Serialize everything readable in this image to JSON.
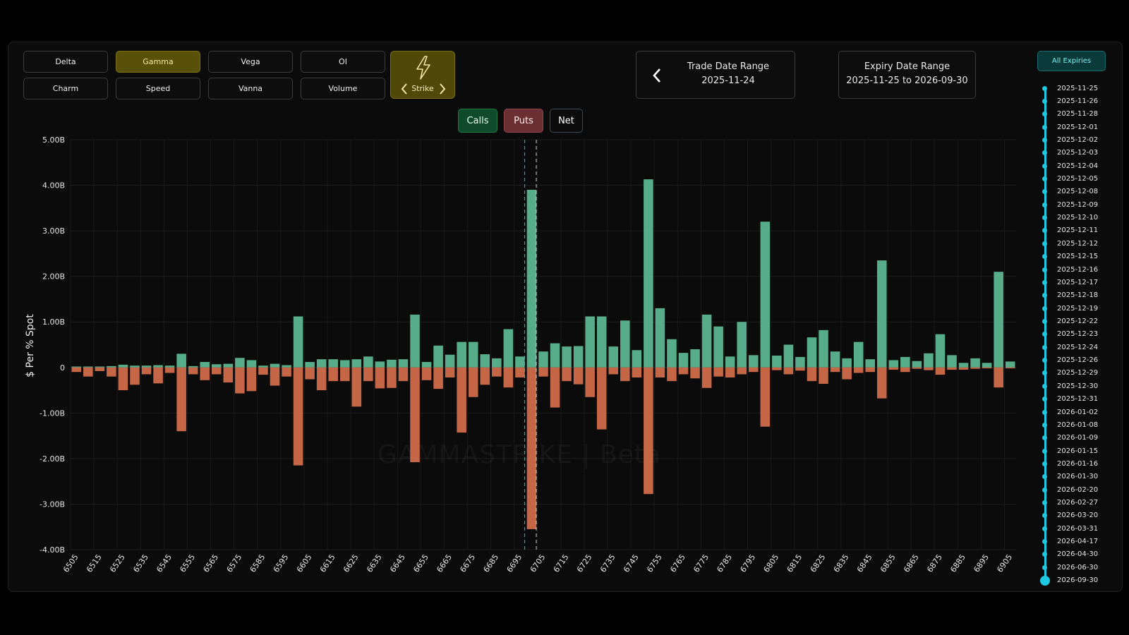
{
  "metric_buttons": [
    {
      "label": "Delta",
      "active": false
    },
    {
      "label": "Gamma",
      "active": true
    },
    {
      "label": "Vega",
      "active": false
    },
    {
      "label": "OI",
      "active": false
    },
    {
      "label": "Charm",
      "active": false
    },
    {
      "label": "Speed",
      "active": false
    },
    {
      "label": "Vanna",
      "active": false
    },
    {
      "label": "Volume",
      "active": false
    }
  ],
  "strike_toggle": {
    "label": "Strike",
    "icon": "lightning-icon"
  },
  "trade_range": {
    "title": "Trade Date Range",
    "value": "2025-11-24"
  },
  "expiry_range": {
    "title": "Expiry Date Range",
    "value": "2025-11-25 to 2026-09-30"
  },
  "filters": {
    "calls": "Calls",
    "puts": "Puts",
    "net": "Net"
  },
  "all_expiries_label": "All Expiries",
  "expiries": [
    "2025-11-25",
    "2025-11-26",
    "2025-11-28",
    "2025-12-01",
    "2025-12-02",
    "2025-12-03",
    "2025-12-04",
    "2025-12-05",
    "2025-12-08",
    "2025-12-09",
    "2025-12-10",
    "2025-12-11",
    "2025-12-12",
    "2025-12-15",
    "2025-12-16",
    "2025-12-17",
    "2025-12-18",
    "2025-12-19",
    "2025-12-22",
    "2025-12-23",
    "2025-12-24",
    "2025-12-26",
    "2025-12-29",
    "2025-12-30",
    "2025-12-31",
    "2026-01-02",
    "2026-01-08",
    "2026-01-09",
    "2026-01-15",
    "2026-01-16",
    "2026-01-30",
    "2026-02-20",
    "2026-02-27",
    "2026-03-20",
    "2026-03-31",
    "2026-04-17",
    "2026-04-30",
    "2026-06-30",
    "2026-09-30"
  ],
  "watermark": "GAMMASTRIKE | Beta",
  "colors": {
    "calls": "#5fbf97",
    "puts": "#d9714e",
    "accent": "#1dc8e0",
    "active": "#595109"
  },
  "chart_data": {
    "type": "bar",
    "ylabel": "$ Per % Spot",
    "ylim": [
      -4,
      5
    ],
    "y_ticks": [
      {
        "v": 5,
        "label": "5.00B"
      },
      {
        "v": 4,
        "label": "4.00B"
      },
      {
        "v": 3,
        "label": "3.00B"
      },
      {
        "v": 2,
        "label": "2.00B"
      },
      {
        "v": 1,
        "label": "1.00B"
      },
      {
        "v": 0,
        "label": "0"
      },
      {
        "v": -1,
        "label": "-1.00B"
      },
      {
        "v": -2,
        "label": "-2.00B"
      },
      {
        "v": -3,
        "label": "-3.00B"
      },
      {
        "v": -4,
        "label": "-4.00B"
      }
    ],
    "x_tick_labels": [
      "6505",
      "6515",
      "6525",
      "6535",
      "6545",
      "6555",
      "6565",
      "6575",
      "6585",
      "6595",
      "6605",
      "6615",
      "6625",
      "6635",
      "6645",
      "6655",
      "6665",
      "6675",
      "6685",
      "6695",
      "6705",
      "6715",
      "6725",
      "6735",
      "6745",
      "6755",
      "6765",
      "6775",
      "6785",
      "6795",
      "6805",
      "6815",
      "6825",
      "6835",
      "6845",
      "6855",
      "6865",
      "6875",
      "6885",
      "6895",
      "6905"
    ],
    "strike_start": 6505,
    "strike_step": 5,
    "series": [
      {
        "name": "Calls",
        "values": [
          0.02,
          0.02,
          0.02,
          0.03,
          0.06,
          0.04,
          0.04,
          0.05,
          0.04,
          0.3,
          0.03,
          0.12,
          0.07,
          0.08,
          0.21,
          0.16,
          0.04,
          0.08,
          0.05,
          1.12,
          0.12,
          0.18,
          0.18,
          0.16,
          0.18,
          0.24,
          0.13,
          0.17,
          0.18,
          1.16,
          0.12,
          0.48,
          0.28,
          0.56,
          0.56,
          0.29,
          0.2,
          0.84,
          0.24,
          3.9,
          0.35,
          0.53,
          0.46,
          0.47,
          1.12,
          1.12,
          0.46,
          1.03,
          0.38,
          4.13,
          1.3,
          0.62,
          0.32,
          0.4,
          1.16,
          0.9,
          0.24,
          1.0,
          0.27,
          3.2,
          0.26,
          0.5,
          0.23,
          0.66,
          0.82,
          0.35,
          0.2,
          0.56,
          0.18,
          2.35,
          0.16,
          0.23,
          0.14,
          0.31,
          0.73,
          0.27,
          0.1,
          0.2,
          0.1,
          2.1,
          0.13
        ]
      },
      {
        "name": "Puts",
        "values": [
          -0.1,
          -0.2,
          -0.08,
          -0.2,
          -0.5,
          -0.38,
          -0.15,
          -0.35,
          -0.12,
          -1.4,
          -0.15,
          -0.28,
          -0.15,
          -0.33,
          -0.57,
          -0.52,
          -0.16,
          -0.4,
          -0.2,
          -2.15,
          -0.26,
          -0.5,
          -0.3,
          -0.3,
          -0.86,
          -0.3,
          -0.46,
          -0.45,
          -0.3,
          -2.08,
          -0.28,
          -0.47,
          -0.22,
          -1.43,
          -0.65,
          -0.38,
          -0.2,
          -0.44,
          -0.22,
          -3.55,
          -0.2,
          -0.88,
          -0.3,
          -0.37,
          -0.65,
          -1.36,
          -0.15,
          -0.3,
          -0.22,
          -2.78,
          -0.22,
          -0.3,
          -0.15,
          -0.24,
          -0.45,
          -0.2,
          -0.22,
          -0.15,
          -0.1,
          -1.3,
          -0.06,
          -0.15,
          -0.07,
          -0.3,
          -0.36,
          -0.1,
          -0.26,
          -0.12,
          -0.1,
          -0.68,
          -0.05,
          -0.1,
          -0.03,
          -0.06,
          -0.16,
          -0.05,
          -0.05,
          -0.03,
          -0.02,
          -0.44,
          -0.02
        ]
      }
    ],
    "markers": [
      {
        "strike": 6697,
        "style": "dashed-cyan"
      },
      {
        "strike": 6702,
        "style": "dashed-white"
      }
    ]
  }
}
